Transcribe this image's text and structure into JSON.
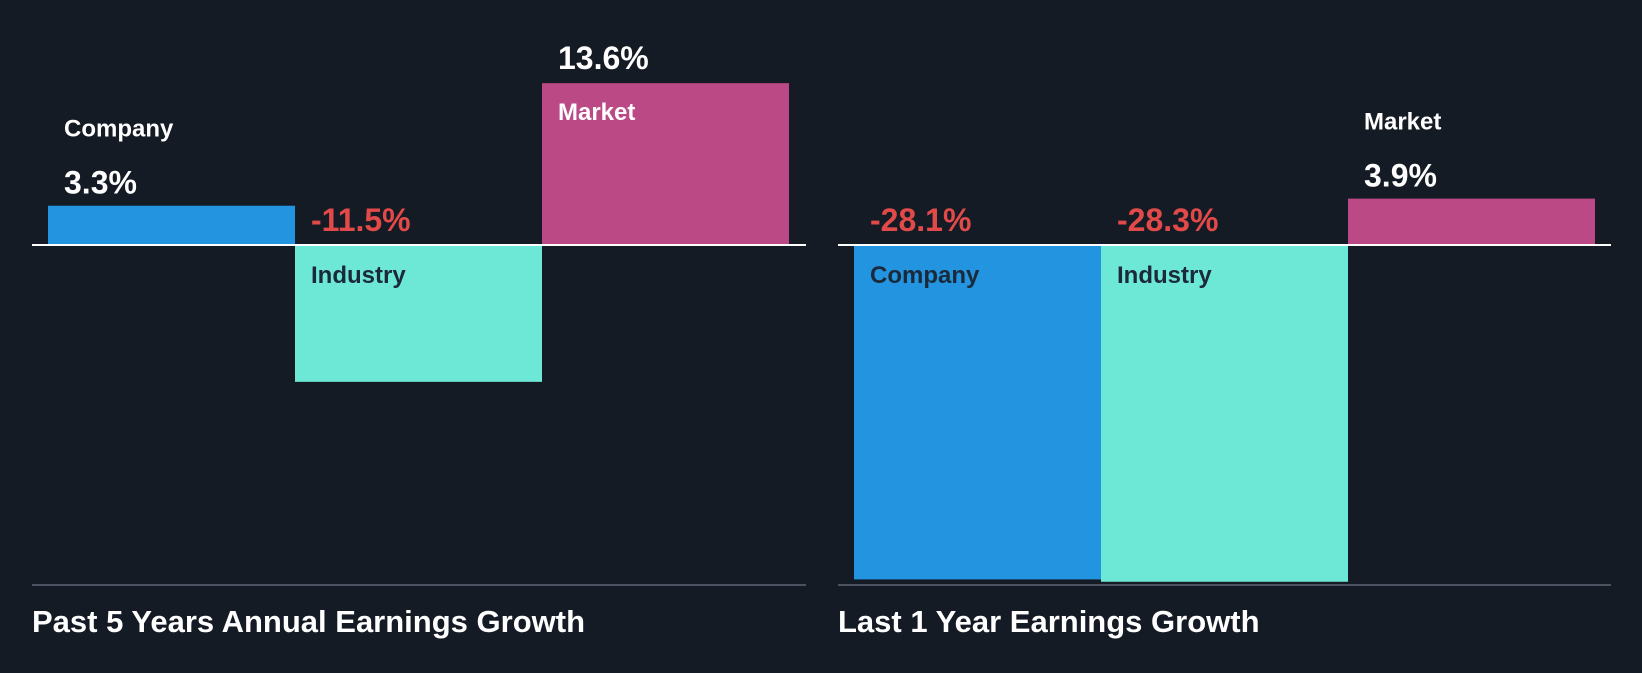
{
  "colors": {
    "background": "#151b24",
    "company": "#2394e0",
    "industry": "#6ee8d6",
    "market": "#ba4986",
    "positive_text": "#ffffff",
    "negative_text": "#e24a4a",
    "label_on_bar": "#1b2a3a",
    "zero_line": "#ffffff",
    "axis_line": "#4a5260"
  },
  "chart_data": [
    {
      "type": "bar",
      "title": "Past 5 Years Annual Earnings Growth",
      "categories": [
        "Company",
        "Industry",
        "Market"
      ],
      "values": [
        3.3,
        -11.5,
        13.6
      ],
      "value_labels": [
        "3.3%",
        "-11.5%",
        "13.6%"
      ],
      "unit": "%",
      "ylim": [
        -24.2,
        13.6
      ]
    },
    {
      "type": "bar",
      "title": "Last 1 Year Earnings Growth",
      "categories": [
        "Company",
        "Industry",
        "Market"
      ],
      "values": [
        -28.1,
        -28.3,
        3.9
      ],
      "value_labels": [
        "-28.1%",
        "-28.3%",
        "3.9%"
      ],
      "unit": "%",
      "ylim": [
        -28.3,
        13.6
      ]
    }
  ]
}
